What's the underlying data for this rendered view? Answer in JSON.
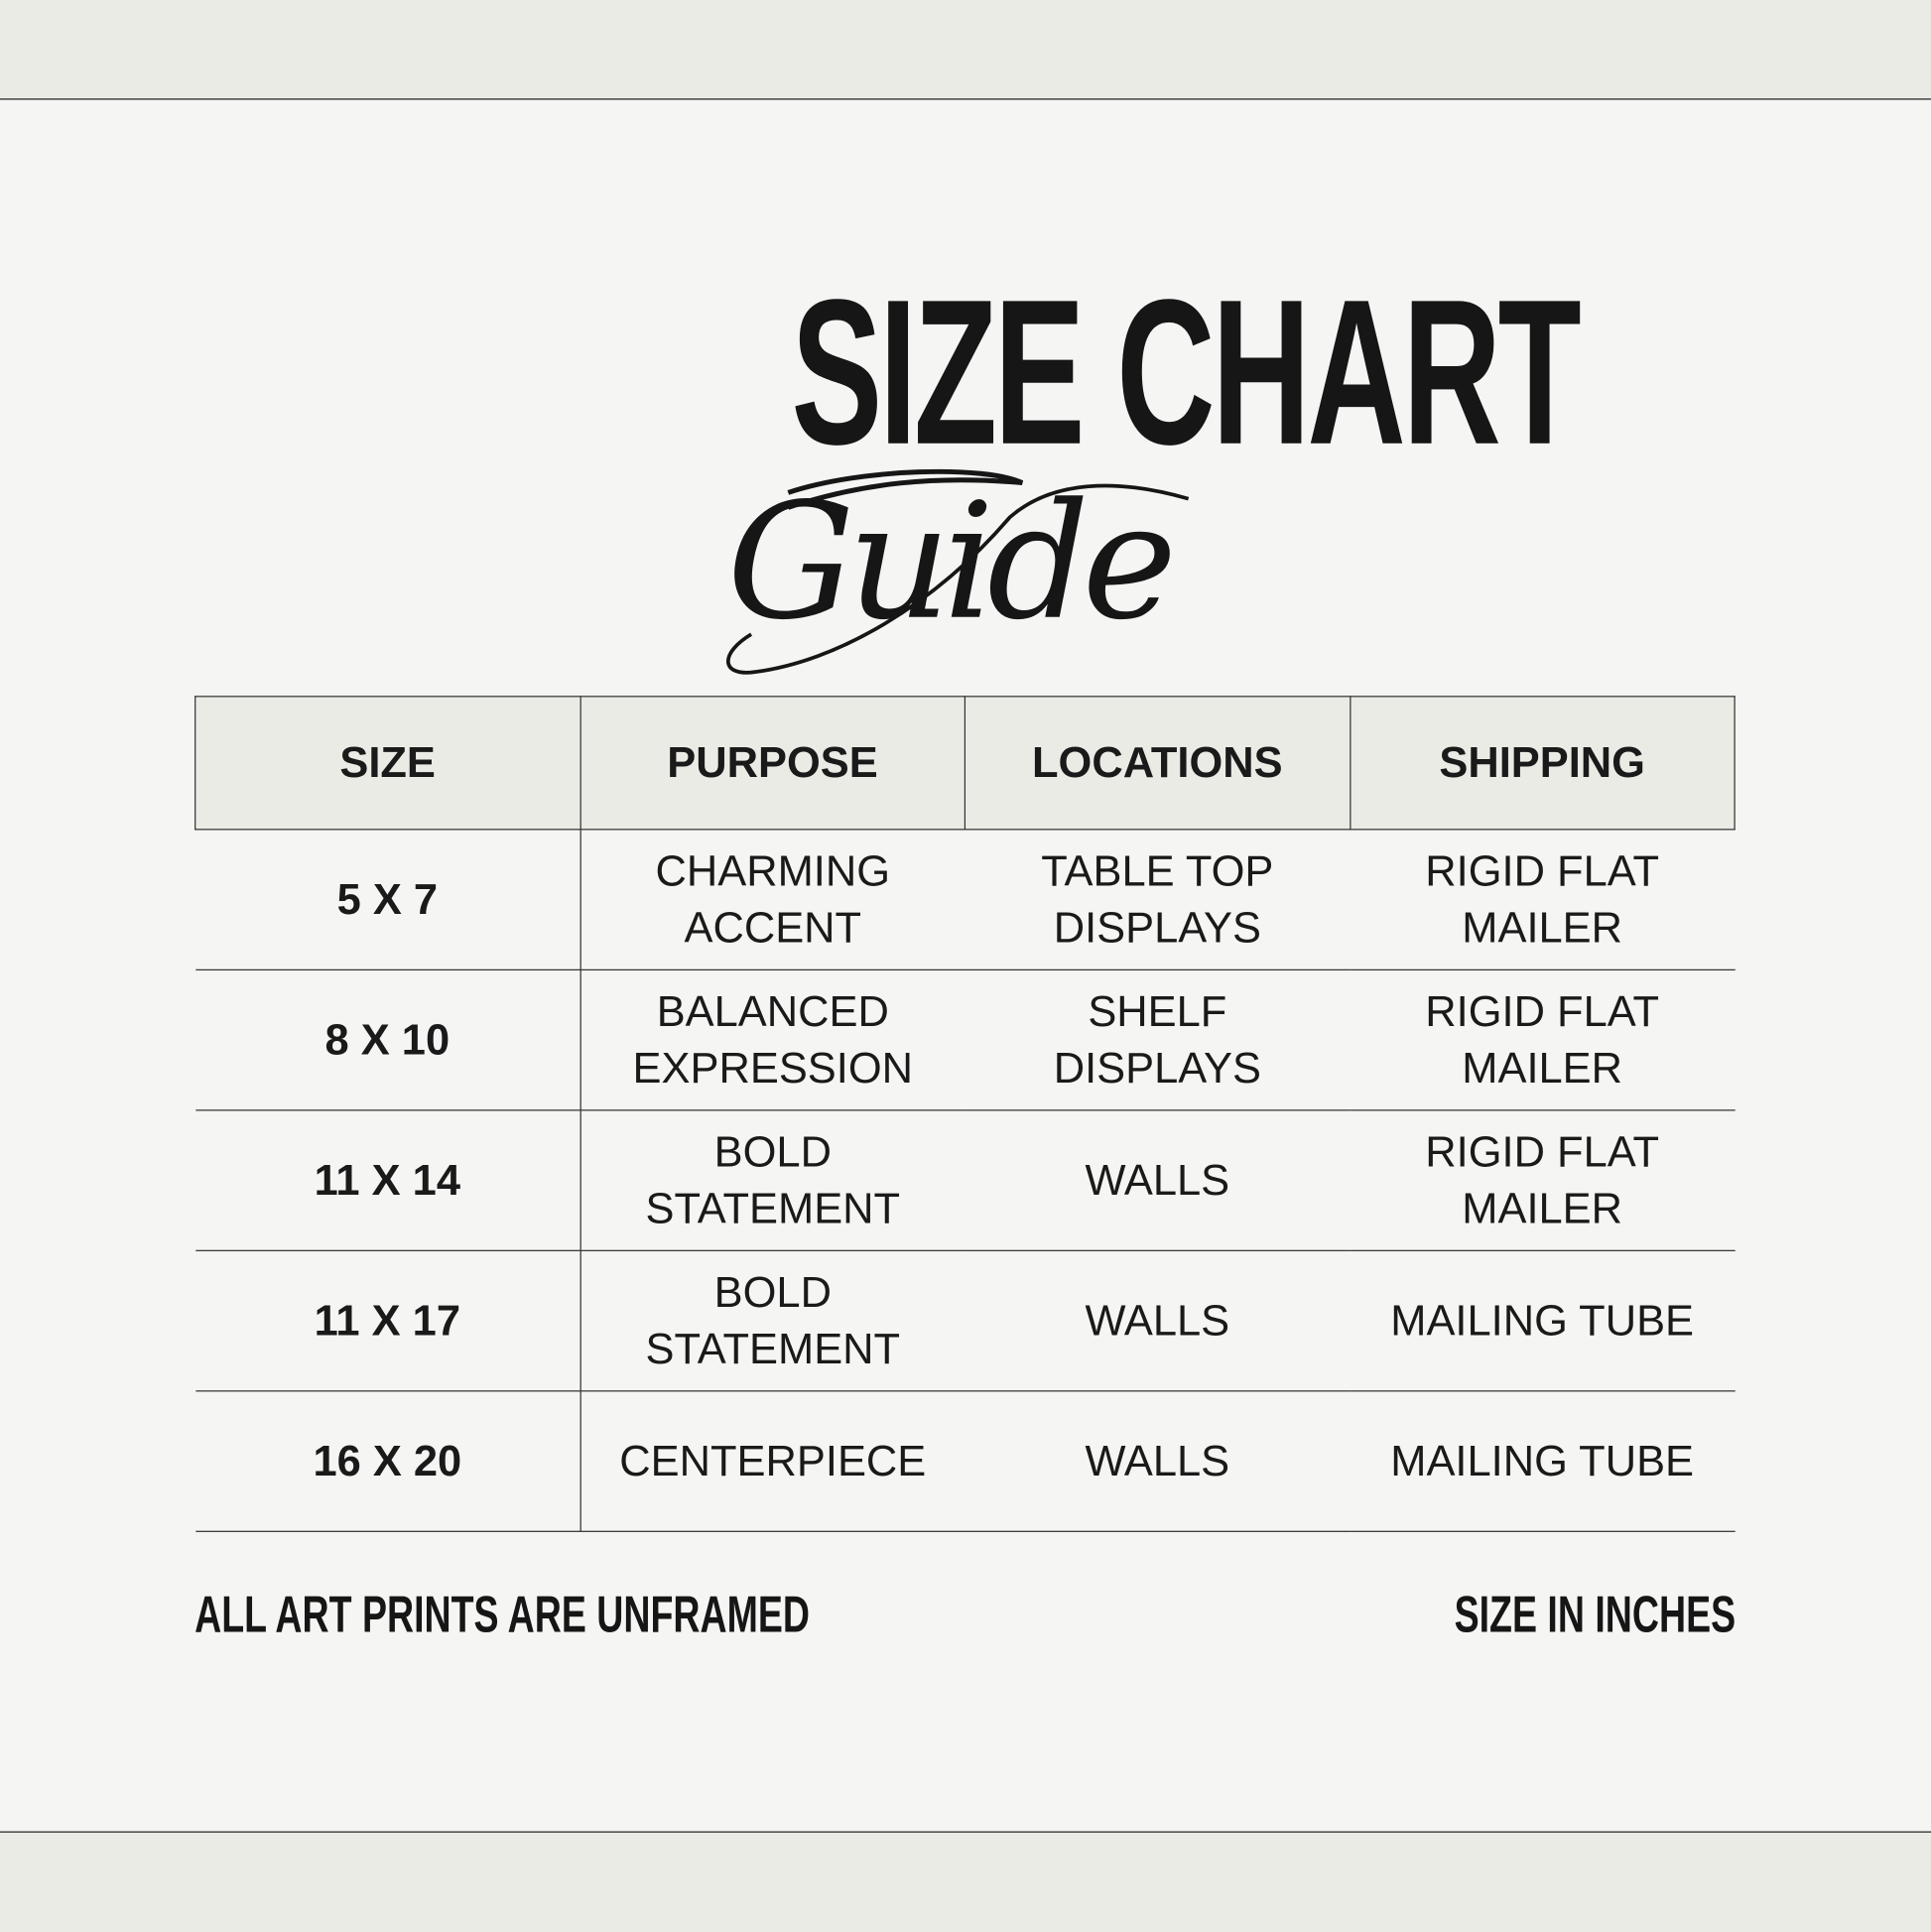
{
  "title": {
    "main": "SIZE CHART",
    "script": "Guide"
  },
  "table": {
    "headers": [
      "SIZE",
      "PURPOSE",
      "LOCATIONS",
      "SHIPPING"
    ],
    "rows": [
      {
        "size": "5 X 7",
        "purpose": [
          "CHARMING",
          "ACCENT"
        ],
        "locations": [
          "TABLE TOP",
          "DISPLAYS"
        ],
        "shipping": [
          "RIGID FLAT",
          "MAILER"
        ]
      },
      {
        "size": "8 X 10",
        "purpose": [
          "BALANCED",
          "EXPRESSION"
        ],
        "locations": [
          "SHELF",
          "DISPLAYS"
        ],
        "shipping": [
          "RIGID FLAT",
          "MAILER"
        ]
      },
      {
        "size": "11 X 14",
        "purpose": [
          "BOLD",
          "STATEMENT"
        ],
        "locations": [
          "WALLS"
        ],
        "shipping": [
          "RIGID FLAT",
          "MAILER"
        ]
      },
      {
        "size": "11 X 17",
        "purpose": [
          "BOLD",
          "STATEMENT"
        ],
        "locations": [
          "WALLS"
        ],
        "shipping": [
          "MAILING TUBE"
        ]
      },
      {
        "size": "16 X 20",
        "purpose": [
          "CENTERPIECE"
        ],
        "locations": [
          "WALLS"
        ],
        "shipping": [
          "MAILING TUBE"
        ]
      }
    ]
  },
  "footer": {
    "left": "ALL ART PRINTS ARE UNFRAMED",
    "right": "SIZE IN INCHES"
  },
  "colors": {
    "band": "#ebebe6",
    "background": "#f5f5f3",
    "text": "#1a1a1a"
  }
}
